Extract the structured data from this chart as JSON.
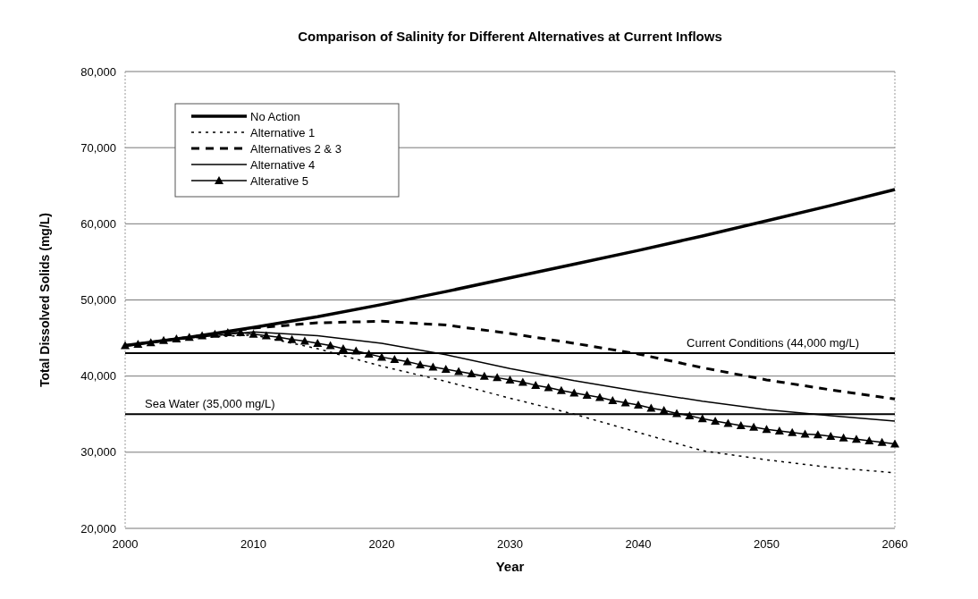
{
  "chart_data": {
    "type": "line",
    "title": "Comparison of Salinity for Different Alternatives at Current Inflows",
    "xlabel": "Year",
    "ylabel": "Total Dissolved Solids (mg/L)",
    "x": [
      2000,
      2005,
      2010,
      2015,
      2020,
      2025,
      2030,
      2035,
      2040,
      2045,
      2050,
      2055,
      2060
    ],
    "series": [
      {
        "name": "No Action",
        "color": "#000000",
        "line_style": "solid",
        "marker": "none",
        "values": [
          44000,
          45100,
          46400,
          47800,
          49400,
          51100,
          52900,
          54700,
          56500,
          58400,
          60400,
          62400,
          64500
        ]
      },
      {
        "name": "Alternative 1",
        "color": "#000000",
        "line_style": "dotted",
        "marker": "none",
        "values": [
          44000,
          45000,
          45400,
          43600,
          41300,
          39300,
          37100,
          35000,
          32600,
          30200,
          29000,
          28000,
          27300
        ]
      },
      {
        "name": "Alternatives 2 & 3",
        "color": "#000000",
        "line_style": "dashed",
        "marker": "none",
        "values": [
          44000,
          45100,
          46300,
          47000,
          47200,
          46700,
          45600,
          44300,
          42900,
          41100,
          39500,
          38200,
          37000
        ]
      },
      {
        "name": "Alternative 4",
        "color": "#000000",
        "line_style": "solid",
        "marker": "none",
        "values": [
          44000,
          45000,
          45800,
          45300,
          44300,
          42800,
          41000,
          39400,
          38000,
          36700,
          35600,
          34800,
          34100
        ]
      },
      {
        "name": "Alterative 5",
        "color": "#000000",
        "line_style": "solid",
        "marker": "triangle",
        "x": [
          2000,
          2001,
          2002,
          2003,
          2004,
          2005,
          2006,
          2007,
          2008,
          2009,
          2010,
          2011,
          2012,
          2013,
          2014,
          2015,
          2016,
          2017,
          2018,
          2019,
          2020,
          2021,
          2022,
          2023,
          2024,
          2025,
          2026,
          2027,
          2028,
          2029,
          2030,
          2031,
          2032,
          2033,
          2034,
          2035,
          2036,
          2037,
          2038,
          2039,
          2040,
          2041,
          2042,
          2043,
          2044,
          2045,
          2046,
          2047,
          2048,
          2049,
          2050,
          2051,
          2052,
          2053,
          2054,
          2055,
          2056,
          2057,
          2058,
          2059,
          2060
        ],
        "values": [
          44000,
          44200,
          44400,
          44700,
          44900,
          45100,
          45300,
          45500,
          45700,
          45700,
          45500,
          45300,
          45100,
          44800,
          44600,
          44300,
          44000,
          43600,
          43300,
          42900,
          42500,
          42200,
          41900,
          41500,
          41200,
          40900,
          40600,
          40300,
          40000,
          39800,
          39500,
          39200,
          38800,
          38500,
          38100,
          37800,
          37500,
          37200,
          36800,
          36500,
          36200,
          35800,
          35500,
          35100,
          34800,
          34400,
          34100,
          33800,
          33500,
          33300,
          33000,
          32800,
          32600,
          32400,
          32300,
          32100,
          31900,
          31700,
          31500,
          31300,
          31100
        ]
      }
    ],
    "xlim": [
      2000,
      2060
    ],
    "xticks": [
      2000,
      2010,
      2020,
      2030,
      2040,
      2050,
      2060
    ],
    "ylim": [
      20000,
      80000
    ],
    "yticks": [
      {
        "value": 20000,
        "label": "20,000"
      },
      {
        "value": 30000,
        "label": "30,000"
      },
      {
        "value": 40000,
        "label": "40,000"
      },
      {
        "value": 50000,
        "label": "50,000"
      },
      {
        "value": 60000,
        "label": "60,000"
      },
      {
        "value": 70000,
        "label": "70,000"
      },
      {
        "value": 80000,
        "label": "80,000"
      }
    ],
    "ref_lines": [
      {
        "axis": "y",
        "value": 43000,
        "label": "Current Conditions (44,000 mg/L)",
        "color": "#000000"
      },
      {
        "axis": "y",
        "value": 35000,
        "label": "Sea Water (35,000 mg/L)",
        "color": "#000000"
      }
    ],
    "grid": "y",
    "legend": "top left"
  }
}
